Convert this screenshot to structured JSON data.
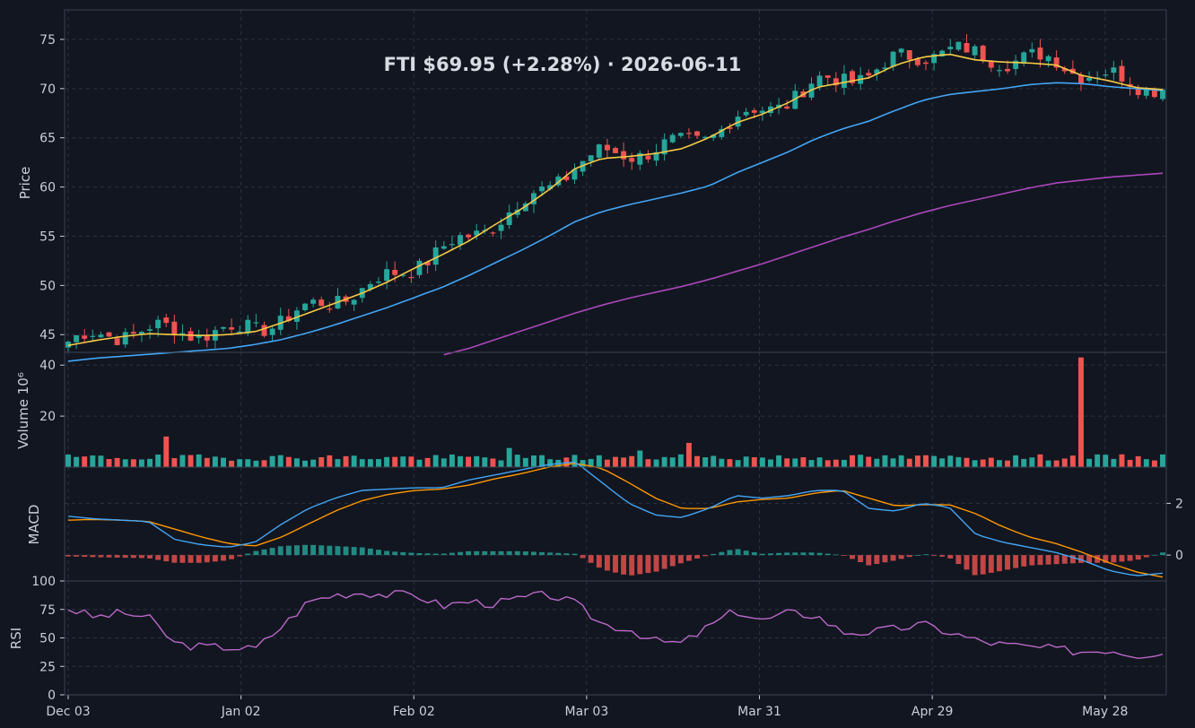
{
  "chart_data": {
    "type": "candlestick",
    "title": "FTI   $69.95   (+2.28%)   ·   2026-06-11",
    "x_tick_labels": [
      "Dec 03",
      "Jan 02",
      "Feb 02",
      "Mar 03",
      "Mar 31",
      "Apr 29",
      "May 28"
    ],
    "date_range": [
      "2025-12-03",
      "2026-06-11"
    ],
    "colors": {
      "up": "#26a69a",
      "down": "#ef5350",
      "ema_fast": "#f6c945",
      "ema_mid": "#42a5f5",
      "ema_slow": "#ab47bc",
      "macd": "#42a5f5",
      "signal": "#ff9800",
      "rsi": "#ba68c8",
      "background": "#121620"
    },
    "panels": [
      {
        "id": "price",
        "ylabel": "Price",
        "ylim": [
          43.2,
          78.0
        ],
        "yticks": [
          45,
          50,
          55,
          60,
          65,
          70,
          75
        ],
        "series": [
          {
            "kind": "candles"
          },
          {
            "kind": "line",
            "color_key": "ema_fast",
            "values": [
              43.9,
              44.4,
              44.8,
              45.1,
              45.0,
              44.9,
              45.0,
              45.3,
              46.2,
              47.2,
              48.2,
              49.2,
              50.4,
              51.8,
              53.1,
              54.5,
              56.2,
              57.8,
              59.7,
              61.9,
              62.9,
              63.1,
              63.4,
              63.9,
              65.0,
              66.5,
              67.4,
              68.6,
              70.1,
              70.6,
              71.1,
              72.4,
              73.2,
              73.5,
              72.9,
              72.7,
              72.6,
              72.4,
              71.3,
              70.8,
              70.1,
              69.9
            ]
          },
          {
            "kind": "line",
            "color_key": "ema_mid",
            "values": [
              42.3,
              42.6,
              42.8,
              43.0,
              43.2,
              43.4,
              43.6,
              44.0,
              44.5,
              45.2,
              46.0,
              46.9,
              47.8,
              48.8,
              49.8,
              51.0,
              52.3,
              53.6,
              55.0,
              56.5,
              57.5,
              58.2,
              58.8,
              59.4,
              60.1,
              61.4,
              62.5,
              63.6,
              64.9,
              65.9,
              66.7,
              67.8,
              68.8,
              69.4,
              69.7,
              70.0,
              70.4,
              70.6,
              70.5,
              70.2,
              70.0,
              69.8
            ]
          },
          {
            "kind": "line",
            "color_key": "ema_slow",
            "values": [
              null,
              null,
              null,
              null,
              null,
              null,
              null,
              null,
              null,
              null,
              null,
              null,
              null,
              null,
              42.9,
              43.6,
              44.5,
              45.4,
              46.3,
              47.2,
              48.0,
              48.7,
              49.3,
              49.9,
              50.6,
              51.4,
              52.2,
              53.1,
              54.0,
              54.9,
              55.7,
              56.6,
              57.4,
              58.1,
              58.7,
              59.3,
              59.9,
              60.4,
              60.7,
              61.0,
              61.2,
              61.4
            ]
          }
        ]
      },
      {
        "id": "volume",
        "ylabel": "Volume  10⁶",
        "ylim": [
          0,
          45
        ],
        "yticks": [
          20,
          40
        ],
        "yticks_side": "left",
        "series": [
          {
            "kind": "bars",
            "values_per_candle": true
          }
        ]
      },
      {
        "id": "macd",
        "ylabel": "MACD",
        "ylim": [
          -1.0,
          3.4
        ],
        "yticks": [
          0,
          2
        ],
        "yticks_side": "right",
        "series": [
          {
            "kind": "line",
            "name_key": "macd",
            "values": [
              1.5,
              1.4,
              1.35,
              1.3,
              0.6,
              0.4,
              0.3,
              0.5,
              1.2,
              1.8,
              2.2,
              2.5,
              2.55,
              2.6,
              2.6,
              2.9,
              3.1,
              3.3,
              3.5,
              3.6,
              2.8,
              2.0,
              1.55,
              1.45,
              1.8,
              2.3,
              2.2,
              2.3,
              2.5,
              2.5,
              1.8,
              1.7,
              2.0,
              1.85,
              0.8,
              0.5,
              0.3,
              0.1,
              -0.2,
              -0.6,
              -0.8,
              -0.7
            ]
          },
          {
            "kind": "line",
            "name_key": "signal",
            "values": [
              1.35,
              1.38,
              1.35,
              1.3,
              1.0,
              0.7,
              0.45,
              0.35,
              0.7,
              1.2,
              1.7,
              2.1,
              2.35,
              2.5,
              2.55,
              2.7,
              2.95,
              3.15,
              3.4,
              3.55,
              3.35,
              2.8,
              2.2,
              1.8,
              1.8,
              2.05,
              2.15,
              2.2,
              2.4,
              2.5,
              2.2,
              1.9,
              1.95,
              1.95,
              1.6,
              1.1,
              0.7,
              0.45,
              0.1,
              -0.3,
              -0.65,
              -0.85
            ]
          },
          {
            "kind": "histogram",
            "values": [
              -0.05,
              -0.08,
              -0.1,
              -0.12,
              -0.3,
              -0.3,
              -0.2,
              0.15,
              0.35,
              0.4,
              0.35,
              0.3,
              0.15,
              0.08,
              0.05,
              0.15,
              0.15,
              0.15,
              0.1,
              0.05,
              -0.55,
              -0.8,
              -0.65,
              -0.3,
              0.0,
              0.25,
              0.05,
              0.1,
              0.1,
              0.0,
              -0.4,
              -0.2,
              0.05,
              -0.1,
              -0.8,
              -0.6,
              -0.4,
              -0.35,
              -0.3,
              -0.3,
              -0.2,
              0.1
            ]
          }
        ]
      },
      {
        "id": "rsi",
        "ylabel": "RSI",
        "ylim": [
          0,
          100
        ],
        "yticks": [
          0,
          25,
          50,
          75,
          100
        ],
        "yticks_side": "left",
        "series": [
          {
            "kind": "line",
            "color_key": "rsi",
            "values": [
              76,
              68,
              72,
              68,
              45,
              42,
              42,
              40,
              60,
              82,
              88,
              90,
              88,
              88,
              78,
              82,
              80,
              85,
              88,
              80,
              62,
              58,
              47,
              45,
              60,
              74,
              65,
              72,
              70,
              55,
              55,
              58,
              62,
              55,
              48,
              44,
              42,
              40,
              38,
              40,
              35,
              38
            ]
          }
        ]
      }
    ]
  }
}
